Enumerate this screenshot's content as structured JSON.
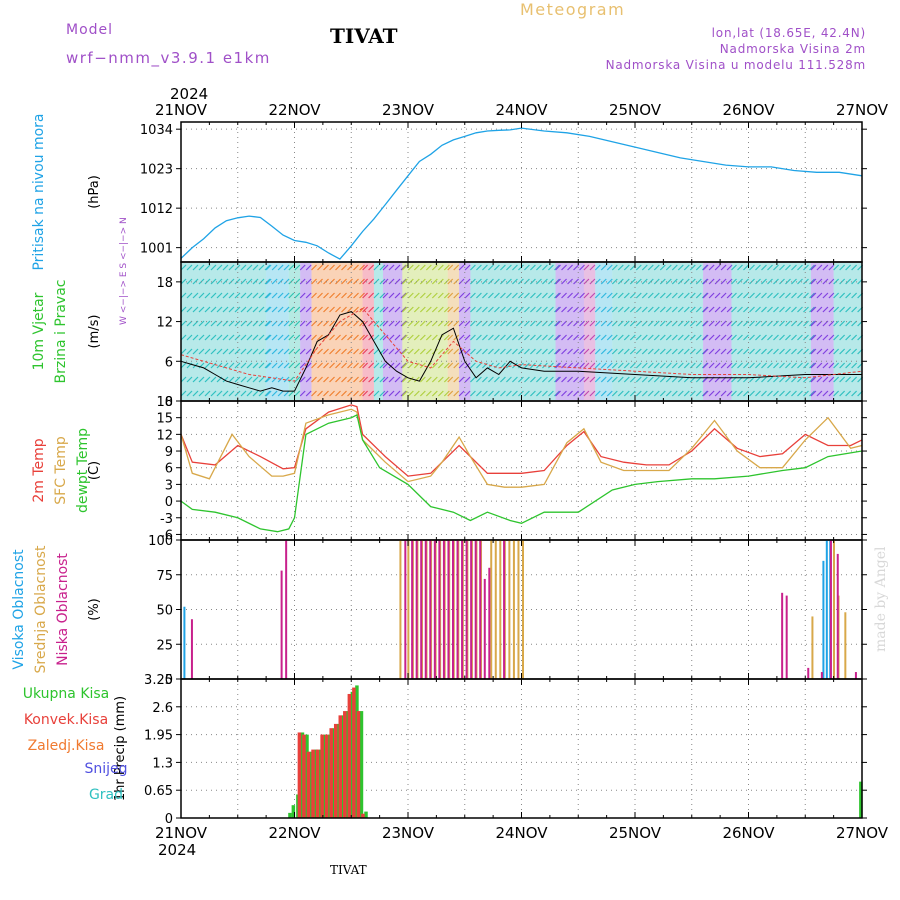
{
  "header": {
    "model_label": "Model",
    "model_name": "wrf−nmm_v3.9.1  e1km",
    "station": "TIVAT",
    "product": "Meteogram",
    "coords": "lon,lat (18.65E, 42.4N)",
    "elevation": "Nadmorska Visina 2m",
    "model_elevation": "Nadmorska Visina u modelu 111.528m",
    "year_top": "2024",
    "year_bottom": "2024",
    "footer_station": "TIVAT",
    "credit": "made by Angel",
    "compass": "W <−|−> E   S <−|−> N"
  },
  "time_axis": {
    "labels": [
      "21NOV",
      "22NOV",
      "23NOV",
      "24NOV",
      "25NOV",
      "26NOV",
      "27NOV"
    ],
    "days": 6
  },
  "colors": {
    "pressure": "#1fa3e6",
    "wind_speed": "#000000",
    "temp2m": "#e8403a",
    "sfc_temp": "#d8a84a",
    "dewpt": "#2ec42e",
    "high_cloud": "#1fa3e6",
    "mid_cloud": "#d8a84a",
    "low_cloud": "#c8208c",
    "total_rain": "#2ec42e",
    "conv_rain": "#e8403a",
    "freezing_rain": "#f07a30",
    "snow": "#5050e0",
    "graupel": "#30c0c0",
    "text_purple": "#a050c8",
    "text_gold": "#e8c070"
  },
  "chart_data": [
    {
      "id": "pressure",
      "type": "line",
      "ylabel": "(hPa)",
      "title_lines": [
        "Pritisak na nivou mora"
      ],
      "ylim": [
        997,
        1036
      ],
      "yticks": [
        1001,
        1012,
        1023,
        1034
      ],
      "series": [
        {
          "x": [
            0,
            0.1,
            0.2,
            0.3,
            0.4,
            0.5,
            0.6,
            0.7,
            0.8,
            0.9,
            1.0,
            1.1,
            1.2,
            1.3,
            1.4,
            1.5,
            1.55,
            1.6,
            1.7,
            1.8,
            1.9,
            2.0,
            2.1,
            2.2,
            2.3,
            2.4,
            2.5,
            2.6,
            2.7,
            2.8,
            2.9,
            3.0,
            3.2,
            3.4,
            3.6,
            3.8,
            4.0,
            4.2,
            4.4,
            4.6,
            4.8,
            5.0,
            5.2,
            5.4,
            5.6,
            5.8,
            6.0
          ],
          "y": [
            998,
            1001,
            1003.5,
            1006.5,
            1008.5,
            1009.3,
            1009.8,
            1009.4,
            1007,
            1004.5,
            1003,
            1002.5,
            1001.5,
            999.5,
            997.8,
            1001.5,
            1003.5,
            1005.5,
            1009,
            1013,
            1017,
            1021,
            1025,
            1027,
            1029.5,
            1031,
            1032,
            1033,
            1033.5,
            1033.7,
            1033.8,
            1034.3,
            1033.5,
            1033,
            1032,
            1030.5,
            1029,
            1027.5,
            1026,
            1025,
            1024,
            1023.5,
            1023.5,
            1022.5,
            1022,
            1022,
            1021
          ]
        }
      ]
    },
    {
      "id": "wind",
      "type": "line",
      "ylabel": "(m/s)",
      "title_lines": [
        "10m Vjetar",
        "Brzina i Pravac"
      ],
      "ylim": [
        0,
        21
      ],
      "yticks": [
        0,
        6,
        12,
        18
      ],
      "series": [
        {
          "key": "wind_speed",
          "x": [
            0,
            0.1,
            0.2,
            0.3,
            0.4,
            0.5,
            0.6,
            0.7,
            0.8,
            0.9,
            1.0,
            1.1,
            1.2,
            1.3,
            1.4,
            1.5,
            1.6,
            1.7,
            1.8,
            1.9,
            2.0,
            2.1,
            2.2,
            2.3,
            2.4,
            2.5,
            2.6,
            2.7,
            2.8,
            2.9,
            3.0,
            3.2,
            3.5,
            4.0,
            4.5,
            5.0,
            5.5,
            6.0
          ],
          "y": [
            6,
            5.5,
            5,
            4,
            3,
            2.5,
            2,
            1.5,
            2,
            1.5,
            1.5,
            5,
            9,
            10,
            13,
            13.5,
            12,
            9,
            6,
            4.5,
            3.5,
            3,
            6,
            10,
            11,
            6,
            3.5,
            5,
            4,
            6,
            5,
            4.5,
            4.5,
            4,
            3.5,
            3.5,
            4,
            4
          ]
        },
        {
          "key": "gust",
          "x": [
            0,
            0.2,
            0.4,
            0.6,
            0.8,
            1.0,
            1.2,
            1.4,
            1.6,
            1.8,
            2.0,
            2.2,
            2.4,
            2.6,
            2.8,
            3.0,
            3.5,
            4.0,
            4.5,
            5.0,
            5.5,
            6.0
          ],
          "y": [
            7,
            6,
            5,
            4,
            3.5,
            3,
            8,
            12,
            14,
            10,
            6,
            5,
            9,
            6,
            5,
            5.5,
            5,
            4.5,
            4,
            4,
            3.5,
            4.5
          ]
        }
      ]
    },
    {
      "id": "temperature",
      "type": "line",
      "ylabel": "(C)",
      "title_lines": [
        "2m Temp",
        "SFC Temp",
        "dewpt Temp"
      ],
      "ylim": [
        -7,
        18
      ],
      "yticks": [
        -6,
        -3,
        0,
        3,
        6,
        9,
        12,
        15,
        18
      ],
      "series": [
        {
          "key": "temp2m",
          "x": [
            0,
            0.1,
            0.3,
            0.5,
            0.7,
            0.9,
            1.0,
            1.1,
            1.3,
            1.5,
            1.55,
            1.6,
            1.8,
            2.0,
            2.2,
            2.3,
            2.45,
            2.55,
            2.7,
            2.85,
            3.0,
            3.2,
            3.4,
            3.55,
            3.7,
            3.9,
            4.1,
            4.3,
            4.5,
            4.7,
            4.9,
            5.1,
            5.3,
            5.5,
            5.7,
            5.9,
            6.0
          ],
          "y": [
            12,
            7,
            6.5,
            10,
            8,
            5.8,
            6,
            13,
            16,
            17.3,
            17,
            12,
            8,
            4.5,
            5,
            7,
            10,
            8,
            5,
            5,
            5,
            5.5,
            10,
            12.5,
            8,
            7,
            6.5,
            6.5,
            9,
            13,
            9.5,
            8,
            8.5,
            12,
            10,
            10,
            11
          ]
        },
        {
          "key": "sfc_temp",
          "x": [
            0,
            0.1,
            0.25,
            0.45,
            0.6,
            0.8,
            0.9,
            1.0,
            1.1,
            1.3,
            1.5,
            1.55,
            1.6,
            1.8,
            2.0,
            2.2,
            2.3,
            2.45,
            2.55,
            2.7,
            2.85,
            3.0,
            3.2,
            3.4,
            3.55,
            3.7,
            3.9,
            4.1,
            4.3,
            4.5,
            4.7,
            4.9,
            5.1,
            5.3,
            5.5,
            5.7,
            5.9,
            6.0
          ],
          "y": [
            12,
            5,
            4,
            12,
            8,
            4.5,
            4.5,
            5,
            14,
            15.5,
            16.5,
            16,
            11,
            7,
            3.5,
            4.5,
            7,
            11.5,
            8,
            3,
            2.5,
            2.5,
            3,
            10.5,
            13,
            7,
            5.5,
            5.5,
            5.5,
            9.5,
            14.5,
            9,
            6,
            6,
            11,
            15,
            9.5,
            10
          ]
        },
        {
          "key": "dewpt",
          "x": [
            0,
            0.1,
            0.3,
            0.5,
            0.7,
            0.85,
            0.95,
            1.0,
            1.1,
            1.3,
            1.5,
            1.55,
            1.6,
            1.75,
            2.0,
            2.2,
            2.4,
            2.55,
            2.7,
            2.9,
            3.0,
            3.2,
            3.5,
            3.8,
            4.0,
            4.2,
            4.5,
            4.7,
            5.0,
            5.3,
            5.5,
            5.7,
            6.0
          ],
          "y": [
            0,
            -1.5,
            -2,
            -3,
            -5,
            -5.5,
            -5,
            -3,
            12,
            14,
            15,
            15.5,
            11,
            6,
            3,
            -1,
            -2,
            -3.5,
            -2,
            -3.5,
            -4,
            -2,
            -2,
            2,
            3,
            3.5,
            4,
            4,
            4.5,
            5.5,
            6,
            8,
            9
          ]
        }
      ]
    },
    {
      "id": "clouds",
      "type": "bar",
      "ylabel": "(%)",
      "title_lines": [
        "Visoka Oblacnost",
        "Srednja Oblacnost",
        "Niska Oblacnost"
      ],
      "ylim": [
        0,
        100
      ],
      "yticks": [
        0,
        25,
        50,
        75,
        100
      ],
      "series": [
        {
          "key": "high_cloud",
          "x": [
            0.03,
            0.21,
            0.31,
            0.42,
            0.5,
            5.66,
            5.69,
            5.72
          ],
          "y": [
            52,
            0,
            0,
            0,
            0,
            85,
            100,
            100
          ]
        },
        {
          "key": "mid_cloud",
          "x": [
            1.92,
            1.99,
            2.03,
            2.07,
            2.11,
            2.15,
            2.19,
            2.23,
            2.27,
            2.31,
            2.35,
            2.39,
            2.43,
            2.47,
            2.51,
            2.55,
            2.59,
            2.63,
            2.72,
            2.76,
            2.8,
            2.84,
            2.88,
            2.92,
            2.96,
            3.0,
            5.55,
            5.74,
            5.78,
            5.84
          ],
          "y": [
            100,
            100,
            100,
            100,
            100,
            100,
            100,
            100,
            100,
            100,
            100,
            100,
            100,
            100,
            100,
            100,
            100,
            100,
            100,
            100,
            100,
            100,
            100,
            100,
            100,
            100,
            45,
            100,
            60,
            48
          ]
        },
        {
          "key": "low_cloud",
          "x": [
            0.07,
            0.86,
            0.9,
            1.95,
            2.01,
            2.05,
            2.09,
            2.13,
            2.17,
            2.21,
            2.25,
            2.29,
            2.33,
            2.37,
            2.41,
            2.45,
            2.49,
            2.53,
            2.57,
            2.61,
            2.65,
            2.69,
            2.82,
            5.27,
            5.31,
            5.5,
            5.62,
            5.7,
            5.76,
            5.92
          ],
          "y": [
            43,
            78,
            100,
            100,
            100,
            100,
            100,
            100,
            100,
            100,
            100,
            100,
            100,
            100,
            100,
            100,
            100,
            100,
            100,
            100,
            72,
            80,
            100,
            62,
            60,
            8,
            5,
            100,
            90,
            5
          ]
        }
      ]
    },
    {
      "id": "precip",
      "type": "bar",
      "ylabel": "1hr Precip (mm)",
      "title_lines": [
        "Ukupna Kisa",
        "Konvek.Kisa",
        "Zaledj.Kisa",
        "Snijeg",
        "Grad"
      ],
      "ylim": [
        0,
        3.25
      ],
      "yticks": [
        0,
        0.65,
        1.3,
        1.95,
        2.6,
        3.25
      ],
      "series": [
        {
          "key": "total_rain",
          "x": [
            0.96,
            0.99,
            1.03,
            1.07,
            1.11,
            1.15,
            1.19,
            1.23,
            1.27,
            1.31,
            1.35,
            1.39,
            1.43,
            1.47,
            1.51,
            1.55,
            1.59,
            1.63,
            5.99
          ],
          "y": [
            0.12,
            0.3,
            0.55,
            2.0,
            1.95,
            1.55,
            1.6,
            1.6,
            1.95,
            1.95,
            2.1,
            2.2,
            2.4,
            2.5,
            2.95,
            3.1,
            2.5,
            0.15,
            0.85
          ]
        },
        {
          "key": "conv_rain",
          "x": [
            1.03,
            1.07,
            1.11,
            1.15,
            1.19,
            1.23,
            1.27,
            1.31,
            1.35,
            1.39,
            1.43,
            1.47,
            1.51,
            1.55,
            1.59
          ],
          "y": [
            2.0,
            1.95,
            1.55,
            1.6,
            1.6,
            1.95,
            1.95,
            2.1,
            2.2,
            2.4,
            2.5,
            2.9,
            3.05,
            2.5,
            0.1
          ]
        }
      ]
    }
  ]
}
